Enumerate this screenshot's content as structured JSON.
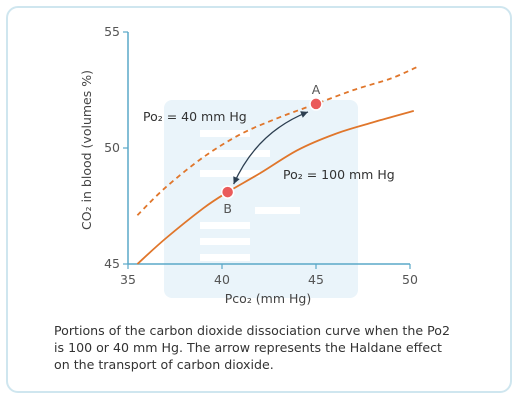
{
  "chart_data": {
    "type": "line",
    "xlabel": "Pco₂ (mm Hg)",
    "ylabel": "CO₂ in blood (volumes %)",
    "xlim": [
      35,
      50
    ],
    "ylim": [
      45,
      55
    ],
    "x_ticks": [
      "35",
      "40",
      "45",
      "50"
    ],
    "y_ticks": [
      "45",
      "50",
      "55"
    ],
    "series": [
      {
        "name": "Po₂ = 100 mm Hg",
        "style": "solid",
        "color": "#e0762b",
        "x": [
          35.5,
          37,
          39,
          40.3,
          42,
          44,
          46,
          48,
          50.2
        ],
        "y": [
          45.0,
          46.1,
          47.4,
          48.1,
          48.9,
          49.9,
          50.6,
          51.1,
          51.6
        ]
      },
      {
        "name": "Po₂ = 40 mm Hg",
        "style": "dashed",
        "color": "#e0762b",
        "x": [
          35.5,
          37,
          39,
          41,
          43,
          45,
          47,
          49,
          50.4
        ],
        "y": [
          47.1,
          48.3,
          49.6,
          50.6,
          51.3,
          51.9,
          52.5,
          53.0,
          53.5
        ]
      }
    ],
    "points": [
      {
        "label": "A",
        "x": 45.0,
        "y": 51.9,
        "color": "#ea5b5b"
      },
      {
        "label": "B",
        "x": 40.3,
        "y": 48.1,
        "color": "#ea5b5b"
      }
    ],
    "arrow": {
      "from": "B",
      "to": "A",
      "bidirectional": true
    },
    "grid": false
  },
  "caption": [
    "Portions of the carbon dioxide dissociation curve when the Po2",
    "is 100 or 40 mm Hg. The arrow represents the Haldane effect",
    "on the transport of carbon dioxide."
  ],
  "colors": {
    "border": "#cfe6ef",
    "watermark": "#eaf4fa",
    "axis": "#5aa8c8",
    "curve": "#e0762b",
    "point": "#ea5b5b",
    "arrow": "#2c3e50"
  }
}
